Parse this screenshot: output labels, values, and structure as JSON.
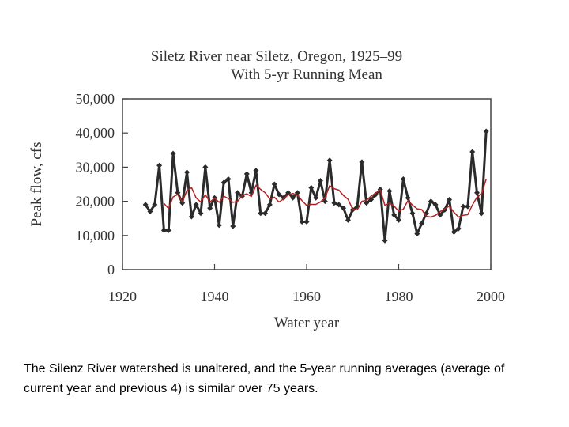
{
  "chart_data": {
    "type": "line",
    "title": "Siletz River near Siletz, Oregon, 1925–99",
    "subtitle": "With 5-yr Running Mean",
    "x_label": "Water year",
    "y_label": "Peak flow, cfs",
    "x": [
      1925,
      1926,
      1927,
      1928,
      1929,
      1930,
      1931,
      1932,
      1933,
      1934,
      1935,
      1936,
      1937,
      1938,
      1939,
      1940,
      1941,
      1942,
      1943,
      1944,
      1945,
      1946,
      1947,
      1948,
      1949,
      1950,
      1951,
      1952,
      1953,
      1954,
      1955,
      1956,
      1957,
      1958,
      1959,
      1960,
      1961,
      1962,
      1963,
      1964,
      1965,
      1966,
      1967,
      1968,
      1969,
      1970,
      1971,
      1972,
      1973,
      1974,
      1975,
      1976,
      1977,
      1978,
      1979,
      1980,
      1981,
      1982,
      1983,
      1984,
      1985,
      1986,
      1987,
      1988,
      1989,
      1990,
      1991,
      1992,
      1993,
      1994,
      1995,
      1996,
      1997,
      1998,
      1999
    ],
    "series": [
      {
        "color": "#2b2b2b",
        "marker": "diamond",
        "values": [
          19000,
          17000,
          19000,
          30500,
          11500,
          11500,
          34000,
          22500,
          19500,
          28500,
          15500,
          19000,
          16500,
          30000,
          18000,
          21000,
          13000,
          25500,
          26500,
          12700,
          22500,
          21500,
          28000,
          22500,
          29000,
          16500,
          16500,
          19000,
          25000,
          22000,
          21000,
          22500,
          21000,
          22500,
          14000,
          14000,
          24000,
          21000,
          26000,
          20000,
          32000,
          19500,
          19000,
          18000,
          14500,
          17500,
          18500,
          31500,
          19500,
          20500,
          22000,
          23500,
          8500,
          23000,
          16000,
          14500,
          26500,
          21000,
          16500,
          10500,
          13500,
          16500,
          20000,
          19000,
          16000,
          17500,
          20500,
          11000,
          12000,
          18500,
          18500,
          34500,
          22500,
          16500,
          40500
        ]
      },
      {
        "color": "#b22222",
        "values": [
          null,
          null,
          null,
          null,
          19400,
          17900,
          21300,
          22000,
          19800,
          23200,
          24000,
          21000,
          19800,
          21900,
          19800,
          20900,
          19700,
          21500,
          20800,
          19700,
          20000,
          21700,
          22200,
          21400,
          24700,
          23500,
          22500,
          20700,
          21200,
          19800,
          20700,
          21900,
          22300,
          21800,
          20200,
          18800,
          19100,
          19100,
          19800,
          21000,
          24600,
          23700,
          23300,
          21700,
          20600,
          17700,
          17500,
          20000,
          20300,
          21500,
          22400,
          23400,
          18800,
          19500,
          18600,
          17100,
          17700,
          20200,
          18900,
          17800,
          17600,
          15600,
          15400,
          15900,
          17000,
          17800,
          18600,
          16800,
          15400,
          15900,
          16100,
          18900,
          21200,
          22100,
          26500
        ]
      }
    ],
    "xlim": [
      1920,
      2000
    ],
    "xticks": [
      1920,
      1940,
      1960,
      1980,
      2000
    ],
    "ylim": [
      0,
      50000
    ],
    "yticks": [
      0,
      {
        "value": 10000,
        "label": "10,000"
      },
      {
        "value": 20000,
        "label": "20,000"
      },
      {
        "value": 30000,
        "label": "30,000"
      },
      {
        "value": 40000,
        "label": "40,000"
      },
      {
        "value": 50000,
        "label": "50,000"
      }
    ],
    "grid": false
  },
  "caption": "The Silenz River watershed is unaltered, and the 5-year running averages (average of current year and previous 4) is similar over 75 years."
}
